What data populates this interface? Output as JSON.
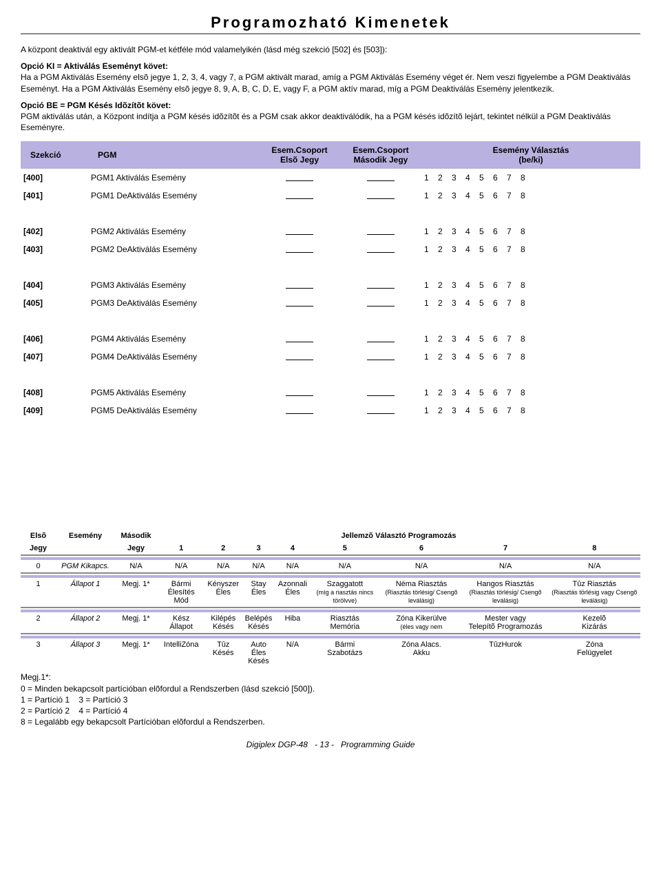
{
  "title": "Programozható Kimenetek",
  "intro": "A központ deaktivál egy aktivált PGM-et kétféle mód valamelyikén (lásd még szekció [502] és [503]):",
  "optKI_title": "Opció KI = Aktiválás Eseményt követ",
  "optKI_body": "Ha a PGM Aktiválás Esemény elsõ jegye 1, 2, 3, 4, vagy 7, a PGM aktivált marad, amíg a PGM Aktiválás Esemény véget ér. Nem veszi figyelembe a PGM Deaktiválás Eseményt. Ha a PGM Aktiválás Esemény elsõ jegye 8, 9, A, B, C, D, E, vagy F, a PGM aktív marad, míg a PGM Deaktiválás Esemény jelentkezik.",
  "optBE_title": "Opció BE = PGM Késés Idõzítõt követ",
  "optBE_body": "PGM aktiválás után, a Központ indítja a PGM késés idõzítõt és a PGM csak akkor deaktiválódik, ha a PGM késés idõzítõ lejárt, tekintet nélkül a PGM Deaktiválás Eseményre.",
  "main_headers": {
    "szekcio": "Szekció",
    "pgm": "PGM",
    "g1a": "Esem.Csoport",
    "g1b": "Elsõ Jegy",
    "g2a": "Esem.Csoport",
    "g2b": "Második Jegy",
    "eva": "Esemény Választás",
    "evb": "(be/ki)"
  },
  "numbers": "1 2 3 4 5 6 7 8",
  "rows": [
    {
      "code": "[400]",
      "name": "PGM1 Aktiválás Esemény"
    },
    {
      "code": "[401]",
      "name": "PGM1 DeAktiválás Esemény"
    },
    {
      "code": "[402]",
      "name": "PGM2 Aktiválás Esemény"
    },
    {
      "code": "[403]",
      "name": "PGM2 DeAktiválás Esemény"
    },
    {
      "code": "[404]",
      "name": "PGM3 Aktiválás Esemény"
    },
    {
      "code": "[405]",
      "name": "PGM3 DeAktiválás Esemény"
    },
    {
      "code": "[406]",
      "name": "PGM4 Aktiválás Esemény"
    },
    {
      "code": "[407]",
      "name": "PGM4 DeAktiválás Esemény"
    },
    {
      "code": "[408]",
      "name": "PGM5 Aktiválás Esemény"
    },
    {
      "code": "[409]",
      "name": "PGM5 DeAktiválás Esemény"
    }
  ],
  "prog_hdr": {
    "c1": "Elsõ",
    "c1b": "Jegy",
    "c2": "Esemény",
    "c3": "Második",
    "c3b": "Jegy",
    "title": "Jellemzõ Választó Programozás",
    "n1": "1",
    "n2": "2",
    "n3": "3",
    "n4": "4",
    "n5": "5",
    "n6": "6",
    "n7": "7",
    "n8": "8"
  },
  "prog_rows": [
    {
      "d": "0",
      "ev": "PGM Kikapcs.",
      "m": "N/A",
      "c": [
        "N/A",
        "N/A",
        "N/A",
        "N/A",
        "N/A",
        "N/A",
        "N/A",
        "N/A"
      ]
    },
    {
      "d": "1",
      "ev": "Állapot 1",
      "m": "Megj. 1*",
      "c": [
        "Bármi Élesítés Mód",
        "Kényszer Éles",
        "Stay Éles",
        "Azonnali Éles",
        "Szaggatott (míg a riasztás nincs törölvve)",
        "Néma Riasztás (Riasztás törlésig/ Csengõ leválásig)",
        "Hangos Riasztás (Riasztás törlésig/ Csengõ leválásig)",
        "Tûz Riasztás (Riasztás törlésig vagy Csengõ leválásig)"
      ]
    },
    {
      "d": "2",
      "ev": "Állapot 2",
      "m": "Megj. 1*",
      "c": [
        "Kész Állapot",
        "Kilépés Késés",
        "Belépés Késés",
        "Hiba",
        "Riasztás Memória",
        "Zóna Kikerülve (éles vagy nem",
        "Mester vagy Telepítõ Programozás",
        "Kezelõ Kizárás"
      ]
    },
    {
      "d": "3",
      "ev": "Állapot 3",
      "m": "Megj. 1*",
      "c": [
        "IntelliZóna",
        "Tûz Késés",
        "Auto Éles Késés",
        "N/A",
        "Bármi Szabotázs",
        "Zóna Alacs. Akku",
        "TûzHurok",
        "Zóna Felügyelet"
      ]
    }
  ],
  "notes": {
    "h": "Megj.1*:",
    "l0": "0 = Minden bekapcsolt partícióban elõfordul a Rendszerben (lásd szekció [500]).",
    "l1": "1 = Partíció 1    3 = Partíció 3",
    "l2": "2 = Partíció 2    4 = Partíció 4",
    "l3": "8 = Legalább egy bekapcsolt Partícióban elõfordul a Rendszerben."
  },
  "footer": {
    "a": "Digiplex DGP-48",
    "b": "- 13 -",
    "c": "Programming Guide"
  }
}
